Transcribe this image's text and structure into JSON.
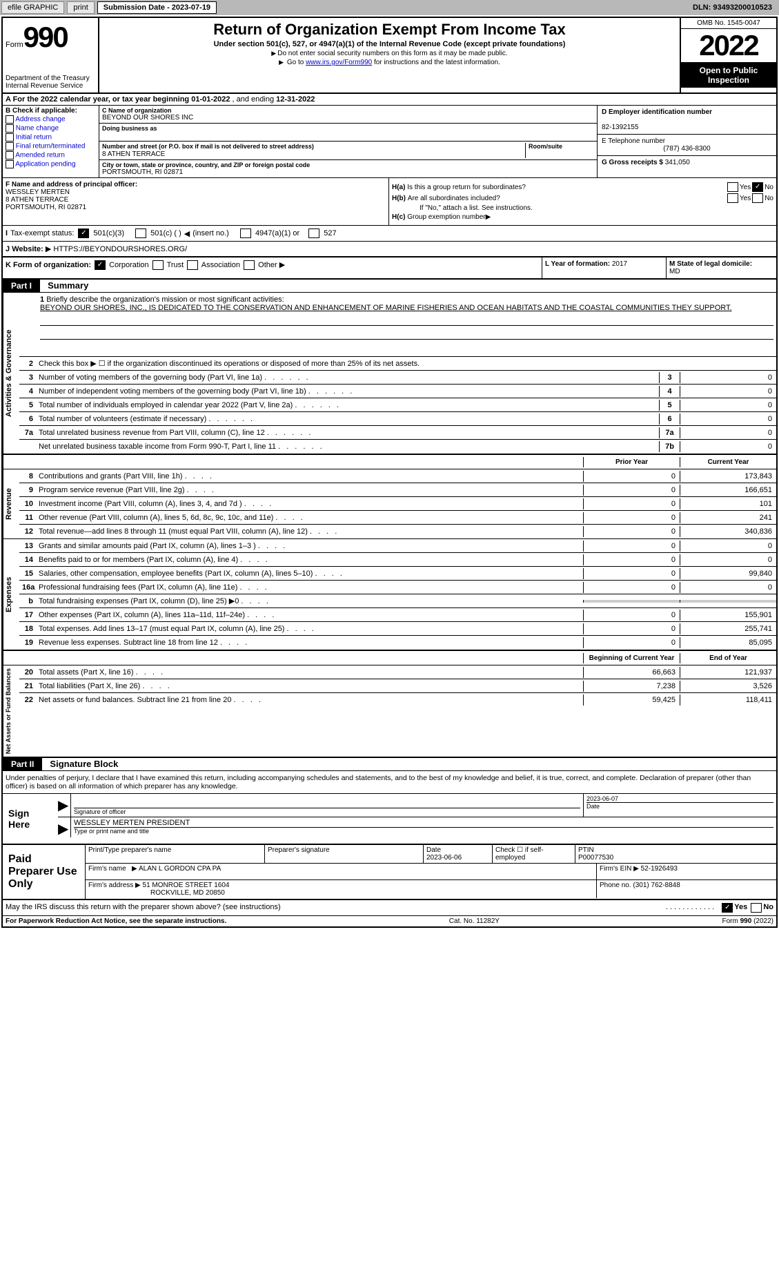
{
  "toolbar": {
    "btn1": "efile GRAPHIC",
    "btn2": "print",
    "sublabel": "Submission Date - 2023-07-19",
    "dln": "DLN: 93493200010523"
  },
  "header": {
    "form_word": "Form",
    "form_num": "990",
    "dept": "Department of the Treasury",
    "irs": "Internal Revenue Service",
    "title": "Return of Organization Exempt From Income Tax",
    "subtitle": "Under section 501(c), 527, or 4947(a)(1) of the Internal Revenue Code (except private foundations)",
    "note1": "Do not enter social security numbers on this form as it may be made public.",
    "note2_pre": "Go to ",
    "note2_link": "www.irs.gov/Form990",
    "note2_post": " for instructions and the latest information.",
    "omb": "OMB No. 1545-0047",
    "year": "2022",
    "open": "Open to Public Inspection"
  },
  "rowA": {
    "label": "A For the 2022 calendar year, or tax year beginning ",
    "begin": "01-01-2022",
    "mid": " , and ending ",
    "end": "12-31-2022"
  },
  "colB": {
    "label": "B Check if applicable:",
    "o1": "Address change",
    "o2": "Name change",
    "o3": "Initial return",
    "o4": "Final return/terminated",
    "o5": "Amended return",
    "o6": "Application pending"
  },
  "colC": {
    "name_label": "C Name of organization",
    "name": "BEYOND OUR SHORES INC",
    "dba_label": "Doing business as",
    "addr_label": "Number and street (or P.O. box if mail is not delivered to street address)",
    "room_label": "Room/suite",
    "addr": "8 ATHEN TERRACE",
    "city_label": "City or town, state or province, country, and ZIP or foreign postal code",
    "city": "PORTSMOUTH, RI  02871"
  },
  "colD": {
    "ein_label": "D Employer identification number",
    "ein": "82-1392155",
    "tel_label": "E Telephone number",
    "tel": "(787) 436-8300",
    "gross_label": "G Gross receipts $",
    "gross": "341,050"
  },
  "colF": {
    "label": "F Name and address of principal officer:",
    "name": "WESSLEY MERTEN",
    "addr1": "8 ATHEN TERRACE",
    "addr2": "PORTSMOUTH, RI  02871"
  },
  "colH": {
    "ha_label": "H(a)",
    "ha_text": "Is this a group return for subordinates?",
    "hb_label": "H(b)",
    "hb_text": "Are all subordinates included?",
    "hb_note": "If \"No,\" attach a list. See instructions.",
    "hc_label": "H(c)",
    "hc_text": "Group exemption number",
    "yes": "Yes",
    "no": "No"
  },
  "rowI": {
    "label": "I",
    "text": "Tax-exempt status:",
    "o1": "501(c)(3)",
    "o2": "501(c) (  )",
    "o2b": "(insert no.)",
    "o3": "4947(a)(1) or",
    "o4": "527"
  },
  "rowJ": {
    "label": "J",
    "text": "Website:",
    "val": "HTTPS://BEYONDOURSHORES.ORG/"
  },
  "rowK": {
    "label": "K Form of organization:",
    "o1": "Corporation",
    "o2": "Trust",
    "o3": "Association",
    "o4": "Other",
    "l_label": "L Year of formation:",
    "l_val": "2017",
    "m_label": "M State of legal domicile:",
    "m_val": "MD"
  },
  "part1": {
    "hdr": "Part I",
    "title": "Summary",
    "line1_label": "1",
    "line1_text": "Briefly describe the organization's mission or most significant activities:",
    "mission": "BEYOND OUR SHORES, INC., IS DEDICATED TO THE CONSERVATION AND ENHANCEMENT OF MARINE FISHERIES AND OCEAN HABITATS AND THE COASTAL COMMUNITIES THEY SUPPORT.",
    "line2": "Check this box ▶ ☐ if the organization discontinued its operations or disposed of more than 25% of its net assets.",
    "sideA": "Activities & Governance",
    "sideB": "Revenue",
    "sideC": "Expenses",
    "sideD": "Net Assets or Fund Balances",
    "rows_gov": [
      {
        "n": "3",
        "d": "Number of voting members of the governing body (Part VI, line 1a)",
        "b": "3",
        "v": "0"
      },
      {
        "n": "4",
        "d": "Number of independent voting members of the governing body (Part VI, line 1b)",
        "b": "4",
        "v": "0"
      },
      {
        "n": "5",
        "d": "Total number of individuals employed in calendar year 2022 (Part V, line 2a)",
        "b": "5",
        "v": "0"
      },
      {
        "n": "6",
        "d": "Total number of volunteers (estimate if necessary)",
        "b": "6",
        "v": "0"
      },
      {
        "n": "7a",
        "d": "Total unrelated business revenue from Part VIII, column (C), line 12",
        "b": "7a",
        "v": "0"
      },
      {
        "n": "",
        "d": "Net unrelated business taxable income from Form 990-T, Part I, line 11",
        "b": "7b",
        "v": "0"
      }
    ],
    "hdr_prior": "Prior Year",
    "hdr_curr": "Current Year",
    "rows_rev": [
      {
        "n": "8",
        "d": "Contributions and grants (Part VIII, line 1h)",
        "p": "0",
        "c": "173,843"
      },
      {
        "n": "9",
        "d": "Program service revenue (Part VIII, line 2g)",
        "p": "0",
        "c": "166,651"
      },
      {
        "n": "10",
        "d": "Investment income (Part VIII, column (A), lines 3, 4, and 7d )",
        "p": "0",
        "c": "101"
      },
      {
        "n": "11",
        "d": "Other revenue (Part VIII, column (A), lines 5, 6d, 8c, 9c, 10c, and 11e)",
        "p": "0",
        "c": "241"
      },
      {
        "n": "12",
        "d": "Total revenue—add lines 8 through 11 (must equal Part VIII, column (A), line 12)",
        "p": "0",
        "c": "340,836"
      }
    ],
    "rows_exp": [
      {
        "n": "13",
        "d": "Grants and similar amounts paid (Part IX, column (A), lines 1–3 )",
        "p": "0",
        "c": "0"
      },
      {
        "n": "14",
        "d": "Benefits paid to or for members (Part IX, column (A), line 4)",
        "p": "0",
        "c": "0"
      },
      {
        "n": "15",
        "d": "Salaries, other compensation, employee benefits (Part IX, column (A), lines 5–10)",
        "p": "0",
        "c": "99,840"
      },
      {
        "n": "16a",
        "d": "Professional fundraising fees (Part IX, column (A), line 11e)",
        "p": "0",
        "c": "0"
      },
      {
        "n": "b",
        "d": "Total fundraising expenses (Part IX, column (D), line 25) ▶0",
        "p": "",
        "c": "",
        "grey": true
      },
      {
        "n": "17",
        "d": "Other expenses (Part IX, column (A), lines 11a–11d, 11f–24e)",
        "p": "0",
        "c": "155,901"
      },
      {
        "n": "18",
        "d": "Total expenses. Add lines 13–17 (must equal Part IX, column (A), line 25)",
        "p": "0",
        "c": "255,741"
      },
      {
        "n": "19",
        "d": "Revenue less expenses. Subtract line 18 from line 12",
        "p": "0",
        "c": "85,095"
      }
    ],
    "hdr_beg": "Beginning of Current Year",
    "hdr_end": "End of Year",
    "rows_net": [
      {
        "n": "20",
        "d": "Total assets (Part X, line 16)",
        "p": "66,663",
        "c": "121,937"
      },
      {
        "n": "21",
        "d": "Total liabilities (Part X, line 26)",
        "p": "7,238",
        "c": "3,526"
      },
      {
        "n": "22",
        "d": "Net assets or fund balances. Subtract line 21 from line 20",
        "p": "59,425",
        "c": "118,411"
      }
    ]
  },
  "part2": {
    "hdr": "Part II",
    "title": "Signature Block",
    "intro": "Under penalties of perjury, I declare that I have examined this return, including accompanying schedules and statements, and to the best of my knowledge and belief, it is true, correct, and complete. Declaration of preparer (other than officer) is based on all information of which preparer has any knowledge.",
    "sign_here": "Sign Here",
    "sig_officer": "Signature of officer",
    "sig_date": "2023-06-07",
    "date_label": "Date",
    "officer_name": "WESSLEY MERTEN  PRESIDENT",
    "type_name": "Type or print name and title",
    "paid": "Paid Preparer Use Only",
    "prep_name_label": "Print/Type preparer's name",
    "prep_sig_label": "Preparer's signature",
    "prep_date_label": "Date",
    "prep_date": "2023-06-06",
    "check_self": "Check ☐ if self-employed",
    "ptin_label": "PTIN",
    "ptin": "P00077530",
    "firm_name_label": "Firm's name",
    "firm_name": "ALAN L GORDON CPA PA",
    "firm_ein_label": "Firm's EIN",
    "firm_ein": "52-1926493",
    "firm_addr_label": "Firm's address",
    "firm_addr1": "51 MONROE STREET 1604",
    "firm_addr2": "ROCKVILLE, MD  20850",
    "phone_label": "Phone no.",
    "phone": "(301) 762-8848",
    "discuss": "May the IRS discuss this return with the preparer shown above? (see instructions)",
    "paperwork": "For Paperwork Reduction Act Notice, see the separate instructions.",
    "cat": "Cat. No. 11282Y",
    "formfoot": "Form 990 (2022)"
  }
}
